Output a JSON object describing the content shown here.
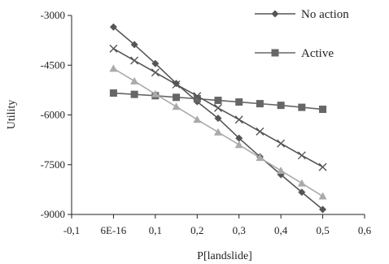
{
  "chart_data": {
    "type": "line",
    "title": "",
    "xlabel": "P[landslide]",
    "ylabel": "Utility",
    "xlim": [
      -0.1,
      0.6
    ],
    "ylim": [
      -9000,
      -3000
    ],
    "x_ticks": [
      -0.1,
      0.0,
      0.1,
      0.2,
      0.3,
      0.4,
      0.5,
      0.6
    ],
    "x_tick_labels": [
      "-0,1",
      "6E-16",
      "0,1",
      "0,2",
      "0,3",
      "0,4",
      "0,5",
      "0,6"
    ],
    "y_ticks": [
      -9000,
      -7500,
      -6000,
      -4500,
      -3000
    ],
    "y_tick_labels": [
      "-9000",
      "-7500",
      "-6000",
      "-4500",
      "-3000"
    ],
    "grid": false,
    "legend_position": "top-right",
    "series": [
      {
        "name": "No action",
        "marker": "diamond",
        "color": "#555555",
        "x": [
          0.0,
          0.05,
          0.1,
          0.15,
          0.2,
          0.25,
          0.3,
          0.35,
          0.4,
          0.45,
          0.5
        ],
        "y": [
          -3350,
          -3880,
          -4450,
          -5050,
          -5600,
          -6100,
          -6700,
          -7260,
          -7800,
          -8330,
          -8850
        ]
      },
      {
        "name": "Active",
        "marker": "square",
        "color": "#666666",
        "x": [
          0.0,
          0.05,
          0.1,
          0.15,
          0.2,
          0.25,
          0.3,
          0.35,
          0.4,
          0.45,
          0.5
        ],
        "y": [
          -5340,
          -5380,
          -5420,
          -5470,
          -5510,
          -5560,
          -5610,
          -5660,
          -5710,
          -5770,
          -5830
        ]
      },
      {
        "marker": "x",
        "color": "#555555",
        "x": [
          0.0,
          0.05,
          0.1,
          0.15,
          0.2,
          0.25,
          0.3,
          0.35,
          0.4,
          0.45,
          0.5
        ],
        "y": [
          -4000,
          -4360,
          -4720,
          -5080,
          -5430,
          -5790,
          -6140,
          -6500,
          -6860,
          -7220,
          -7570
        ]
      },
      {
        "marker": "triangle",
        "color": "#aaaaaa",
        "x": [
          0.0,
          0.05,
          0.1,
          0.15,
          0.2,
          0.25,
          0.3,
          0.35,
          0.4,
          0.45,
          0.5
        ],
        "y": [
          -4600,
          -4980,
          -5370,
          -5750,
          -6140,
          -6520,
          -6900,
          -7290,
          -7680,
          -8060,
          -8450
        ]
      }
    ]
  }
}
